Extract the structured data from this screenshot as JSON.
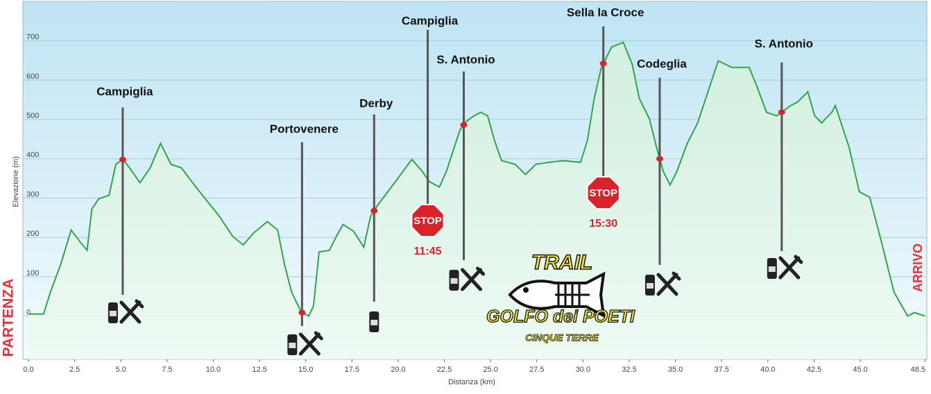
{
  "chart_data": {
    "type": "area",
    "x_label": "Distanza  (km)",
    "y_label": "Elevazione (m)",
    "start_label": "PARTENZA",
    "end_label": "ARRIVO",
    "color": "#2fa44a",
    "grid": true,
    "xlim": [
      -0.3,
      48.6
    ],
    "ylim": [
      -110,
      800
    ],
    "xticks": [
      {
        "value": 0,
        "label": "0.0"
      },
      2.5,
      {
        "value": 5,
        "label": "5.0"
      },
      7.5,
      {
        "value": 10,
        "label": "10.0"
      },
      12.5,
      {
        "value": 15,
        "label": "15.0"
      },
      17.5,
      {
        "value": 20,
        "label": "20.0"
      },
      22.5,
      {
        "value": 25,
        "label": "25.0"
      },
      27.5,
      {
        "value": 30,
        "label": "30.0"
      },
      32.5,
      {
        "value": 35,
        "label": "35.0"
      },
      37.5,
      {
        "value": 40,
        "label": "40.0"
      },
      42.5,
      {
        "value": 45,
        "label": "45.0"
      },
      48.5
    ],
    "yticks": [
      0,
      100,
      200,
      300,
      400,
      500,
      600,
      700
    ],
    "x": [
      0,
      0.82,
      1.19,
      1.75,
      2.31,
      2.87,
      3.17,
      3.43,
      3.8,
      4.36,
      4.73,
      5.1,
      5.47,
      6.03,
      6.59,
      7.15,
      7.71,
      8.27,
      8.83,
      9.57,
      10.32,
      11.06,
      11.62,
      12.18,
      12.92,
      13.48,
      13.85,
      14.23,
      14.6,
      14.79,
      15.16,
      15.42,
      15.72,
      16.28,
      16.65,
      17.02,
      17.58,
      18.14,
      18.51,
      18.88,
      19.44,
      20.0,
      20.74,
      21.3,
      21.68,
      22.23,
      22.61,
      22.98,
      23.35,
      23.72,
      24.1,
      24.47,
      24.84,
      25.21,
      25.59,
      26.33,
      26.89,
      27.45,
      28.19,
      28.94,
      29.87,
      30.24,
      30.61,
      30.99,
      31.55,
      32.18,
      32.66,
      33.04,
      33.59,
      33.97,
      34.34,
      34.71,
      35.08,
      35.64,
      36.2,
      36.76,
      37.32,
      38.06,
      38.99,
      39.37,
      39.93,
      40.48,
      41.23,
      41.6,
      42.16,
      42.53,
      42.91,
      43.46,
      43.65,
      44.02,
      44.39,
      44.95,
      45.51,
      46.07,
      46.82,
      47.56,
      47.93,
      48.49
    ],
    "values": [
      5,
      5,
      61,
      132,
      219,
      184,
      167,
      272,
      298,
      307,
      386,
      398,
      377,
      339,
      377,
      439,
      386,
      377,
      342,
      298,
      254,
      202,
      181,
      211,
      240,
      219,
      132,
      61,
      26,
      9,
      0,
      26,
      163,
      167,
      202,
      233,
      216,
      175,
      254,
      281,
      316,
      351,
      398,
      368,
      342,
      328,
      368,
      421,
      474,
      496,
      509,
      518,
      509,
      447,
      395,
      386,
      360,
      386,
      391,
      395,
      391,
      447,
      554,
      632,
      684,
      696,
      640,
      554,
      502,
      430,
      368,
      333,
      368,
      439,
      491,
      570,
      649,
      632,
      632,
      588,
      518,
      509,
      535,
      544,
      570,
      509,
      491,
      518,
      535,
      482,
      430,
      316,
      302,
      202,
      61,
      0,
      9,
      0
    ],
    "waypoints": [
      {
        "label": "Campiglia",
        "x": 5.1,
        "marker": true,
        "icons": [
          "water",
          "food"
        ]
      },
      {
        "label": "Portovenere",
        "x": 14.8,
        "marker": true,
        "icons": [
          "water",
          "food"
        ]
      },
      {
        "label": "Derby",
        "x": 18.7,
        "marker": true,
        "icons": [
          "water"
        ]
      },
      {
        "label": "Campiglia",
        "x": 21.6,
        "marker": false,
        "icons": []
      },
      {
        "label": "S. Antonio",
        "x": 23.55,
        "marker": true,
        "icons": [
          "water",
          "food"
        ]
      },
      {
        "label": "Sella la Croce",
        "x": 31.1,
        "marker": true,
        "icons": []
      },
      {
        "label": "Codeglia",
        "x": 34.15,
        "marker": true,
        "icons": [
          "water",
          "food"
        ]
      },
      {
        "label": "S. Antonio",
        "x": 40.75,
        "marker": true,
        "icons": [
          "water",
          "food"
        ]
      }
    ],
    "stops": [
      {
        "label": "STOP",
        "time": "11:45",
        "x": 21.6
      },
      {
        "label": "STOP",
        "time": "15:30",
        "x": 31.1
      }
    ],
    "logo": {
      "title": "TRAIL",
      "name": "GOLFO dei POETI",
      "subtitle": "CINQUE TERRE"
    }
  }
}
